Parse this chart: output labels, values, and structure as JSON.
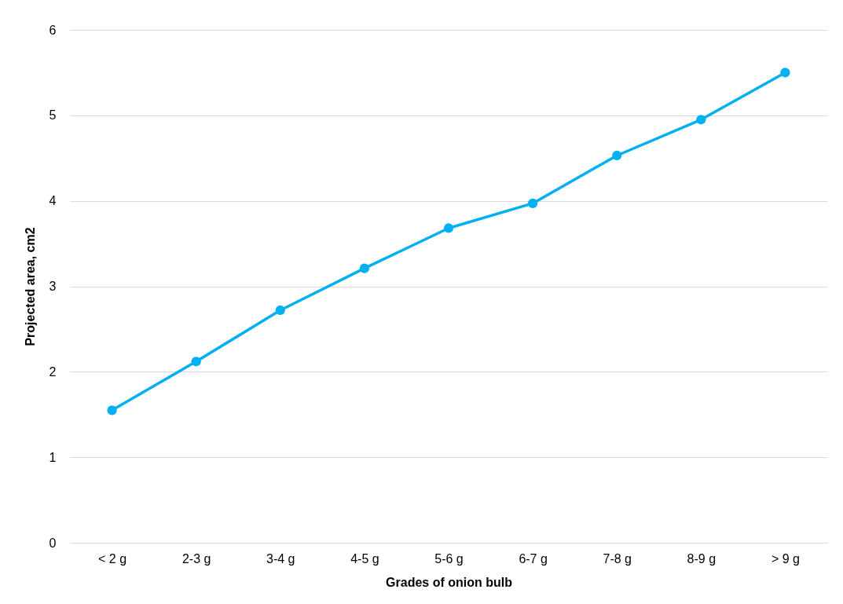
{
  "chart_data": {
    "type": "line",
    "xlabel": "Grades of onion bulb",
    "ylabel": "Projected area, cm2",
    "categories": [
      "< 2 g",
      "2-3 g",
      "3-4 g",
      "4-5 g",
      "5-6 g",
      "6-7 g",
      "7-8 g",
      "8-9 g",
      "> 9 g"
    ],
    "series": [
      {
        "color": "#00b0f0",
        "values": [
          1.55,
          2.12,
          2.72,
          3.21,
          3.68,
          3.97,
          4.53,
          4.95,
          5.5
        ]
      }
    ],
    "ylim": [
      0,
      6
    ],
    "yticks": [
      0,
      1,
      2,
      3,
      4,
      5,
      6
    ],
    "grid": "y",
    "marker": "circle",
    "line_style": "solid"
  }
}
